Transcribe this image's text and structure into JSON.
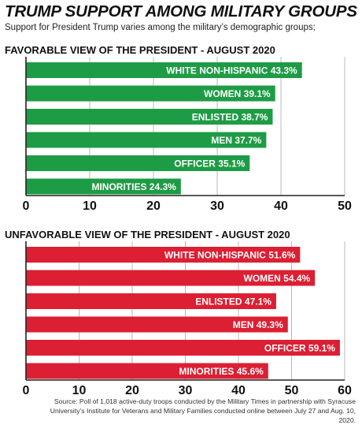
{
  "header": {
    "title": "TRUMP SUPPORT AMONG MILITARY GROUPS",
    "subtitle": "Support for President Trump varies among the military’s demographic groups;"
  },
  "footer": {
    "source": "Source: Poll of 1,018 active-duty troops conducted by the Military Times in partnership with Syracuse University’s Institute for Veterans and Military Families conducted online between July 27 and Aug. 10, 2020."
  },
  "colors": {
    "favorable": "#1e9c45",
    "unfavorable": "#dc1f33"
  },
  "chart_data": [
    {
      "type": "bar",
      "orientation": "horizontal",
      "title": "FAVORABLE VIEW OF THE PRESIDENT - AUGUST 2020",
      "categories": [
        "WHITE NON-HISPANIC",
        "WOMEN",
        "ENLISTED",
        "MEN",
        "OFFICER",
        "MINORITIES"
      ],
      "values": [
        43.3,
        39.1,
        38.7,
        37.7,
        35.1,
        24.3
      ],
      "labels": [
        "WHITE NON-HISPANIC 43.3%",
        "WOMEN 39.1%",
        "ENLISTED 38.7%",
        "MEN 37.7%",
        "OFFICER 35.1%",
        "MINORITIES 24.3%"
      ],
      "xlim": [
        0,
        50
      ],
      "ticks": [
        "0",
        "10",
        "20",
        "30",
        "40",
        "50"
      ],
      "grid": true
    },
    {
      "type": "bar",
      "orientation": "horizontal",
      "title": "UNFAVORABLE VIEW OF THE PRESIDENT - AUGUST 2020",
      "categories": [
        "WHITE NON-HISPANIC",
        "WOMEN",
        "ENLISTED",
        "MEN",
        "OFFICER",
        "MINORITIES"
      ],
      "values": [
        51.6,
        54.4,
        47.1,
        49.3,
        59.1,
        45.6
      ],
      "labels": [
        "WHITE NON-HISPANIC 51.6%",
        "WOMEN 54.4%",
        "ENLISTED 47.1%",
        "MEN 49.3%",
        "OFFICER 59.1%",
        "MINORITIES 45.6%"
      ],
      "xlim": [
        0,
        60
      ],
      "ticks": [
        "0",
        "10",
        "20",
        "30",
        "40",
        "50",
        "60"
      ],
      "grid": true
    }
  ]
}
